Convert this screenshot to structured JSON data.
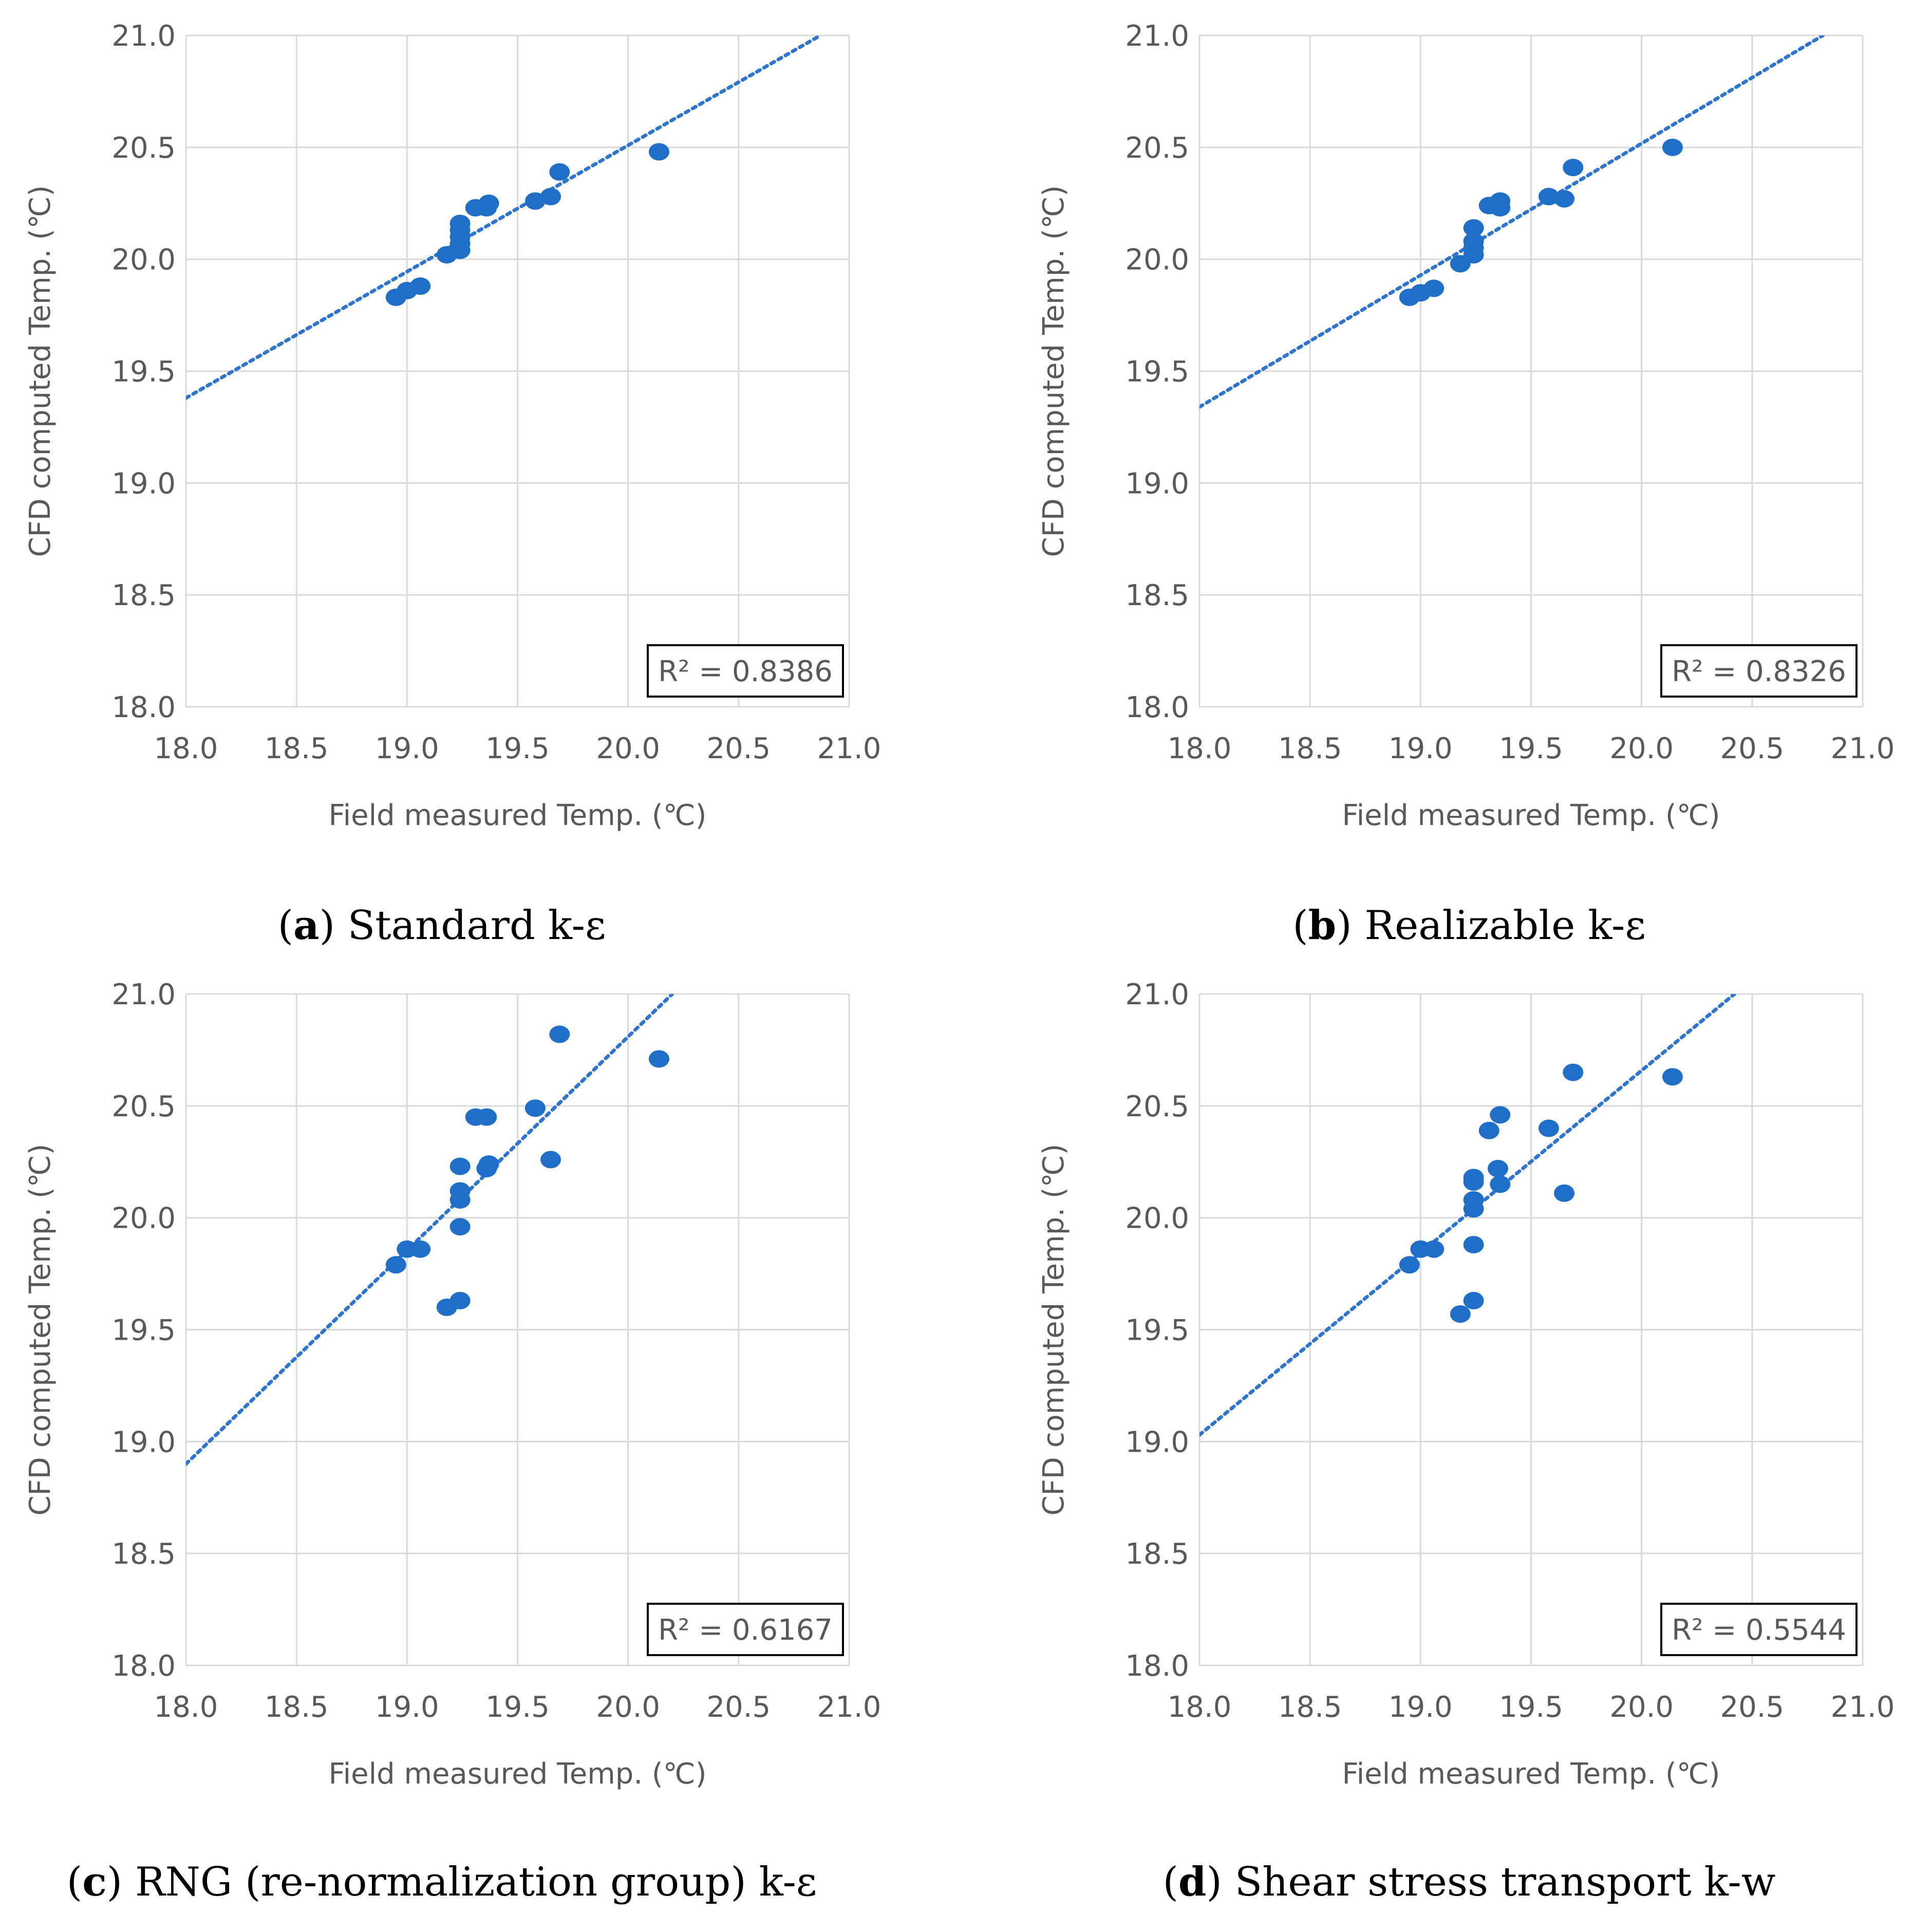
{
  "figure": {
    "panels": [
      {
        "id": "a",
        "caption_letter": "a",
        "caption_text": " Standard k-ε",
        "caption_open": "(",
        "caption_close": ")"
      },
      {
        "id": "b",
        "caption_letter": "b",
        "caption_text": " Realizable k-ε",
        "caption_open": "(",
        "caption_close": ")"
      },
      {
        "id": "c",
        "caption_letter": "c",
        "caption_text": " RNG (re-normalization group) k-ε",
        "caption_open": "(",
        "caption_close": ")"
      },
      {
        "id": "d",
        "caption_letter": "d",
        "caption_text": " Shear stress transport k-w",
        "caption_open": "(",
        "caption_close": ")"
      }
    ]
  },
  "colors": {
    "point": "#1F6FC9",
    "trend": "#2E75D1",
    "grid": "#D9D9D9",
    "text": "#595959"
  },
  "chart_data": [
    {
      "type": "scatter",
      "xlabel": "Field measured Temp. (℃)",
      "ylabel": "CFD computed Temp. (℃)",
      "xlim": [
        18.0,
        21.0
      ],
      "ylim": [
        18.0,
        21.0
      ],
      "xticks": [
        "18.0",
        "18.5",
        "19.0",
        "19.5",
        "20.0",
        "20.5",
        "21.0"
      ],
      "yticks": [
        "18.0",
        "18.5",
        "19.0",
        "19.5",
        "20.0",
        "20.5",
        "21.0"
      ],
      "grid": true,
      "r2_label": "R² = 0.8386",
      "trendline": {
        "x0": 18.0,
        "y0": 19.38,
        "x1": 20.87,
        "y1": 21.0
      },
      "points": [
        {
          "x": 18.95,
          "y": 19.83
        },
        {
          "x": 19.0,
          "y": 19.86
        },
        {
          "x": 19.06,
          "y": 19.88
        },
        {
          "x": 19.18,
          "y": 20.02
        },
        {
          "x": 19.24,
          "y": 20.04
        },
        {
          "x": 19.24,
          "y": 20.07
        },
        {
          "x": 19.24,
          "y": 20.1
        },
        {
          "x": 19.24,
          "y": 20.13
        },
        {
          "x": 19.24,
          "y": 20.16
        },
        {
          "x": 19.31,
          "y": 20.23
        },
        {
          "x": 19.36,
          "y": 20.23
        },
        {
          "x": 19.37,
          "y": 20.25
        },
        {
          "x": 19.58,
          "y": 20.26
        },
        {
          "x": 19.65,
          "y": 20.28
        },
        {
          "x": 19.69,
          "y": 20.39
        },
        {
          "x": 20.14,
          "y": 20.48
        }
      ]
    },
    {
      "type": "scatter",
      "xlabel": "Field measured Temp. (℃)",
      "ylabel": "CFD computed Temp. (℃)",
      "xlim": [
        18.0,
        21.0
      ],
      "ylim": [
        18.0,
        21.0
      ],
      "xticks": [
        "18.0",
        "18.5",
        "19.0",
        "19.5",
        "20.0",
        "20.5",
        "21.0"
      ],
      "yticks": [
        "18.0",
        "18.5",
        "19.0",
        "19.5",
        "20.0",
        "20.5",
        "21.0"
      ],
      "grid": true,
      "r2_label": "R² = 0.8326",
      "trendline": {
        "x0": 18.0,
        "y0": 19.34,
        "x1": 20.82,
        "y1": 21.0
      },
      "points": [
        {
          "x": 18.95,
          "y": 19.83
        },
        {
          "x": 19.0,
          "y": 19.85
        },
        {
          "x": 19.06,
          "y": 19.87
        },
        {
          "x": 19.18,
          "y": 19.98
        },
        {
          "x": 19.24,
          "y": 20.02
        },
        {
          "x": 19.24,
          "y": 20.05
        },
        {
          "x": 19.24,
          "y": 20.08
        },
        {
          "x": 19.24,
          "y": 20.14
        },
        {
          "x": 19.31,
          "y": 20.24
        },
        {
          "x": 19.36,
          "y": 20.23
        },
        {
          "x": 19.36,
          "y": 20.26
        },
        {
          "x": 19.58,
          "y": 20.28
        },
        {
          "x": 19.65,
          "y": 20.27
        },
        {
          "x": 19.69,
          "y": 20.41
        },
        {
          "x": 20.14,
          "y": 20.5
        }
      ]
    },
    {
      "type": "scatter",
      "xlabel": "Field measured Temp. (℃)",
      "ylabel": "CFD computed Temp. (℃)",
      "xlim": [
        18.0,
        21.0
      ],
      "ylim": [
        18.0,
        21.0
      ],
      "xticks": [
        "18.0",
        "18.5",
        "19.0",
        "19.5",
        "20.0",
        "20.5",
        "21.0"
      ],
      "yticks": [
        "18.0",
        "18.5",
        "19.0",
        "19.5",
        "20.0",
        "20.5",
        "21.0"
      ],
      "grid": true,
      "r2_label": "R² = 0.6167",
      "trendline": {
        "x0": 18.0,
        "y0": 18.9,
        "x1": 20.2,
        "y1": 21.0
      },
      "points": [
        {
          "x": 18.95,
          "y": 19.79
        },
        {
          "x": 19.0,
          "y": 19.86
        },
        {
          "x": 19.06,
          "y": 19.86
        },
        {
          "x": 19.18,
          "y": 19.6
        },
        {
          "x": 19.24,
          "y": 19.63
        },
        {
          "x": 19.24,
          "y": 19.96
        },
        {
          "x": 19.24,
          "y": 20.08
        },
        {
          "x": 19.24,
          "y": 20.12
        },
        {
          "x": 19.24,
          "y": 20.23
        },
        {
          "x": 19.31,
          "y": 20.45
        },
        {
          "x": 19.36,
          "y": 20.45
        },
        {
          "x": 19.36,
          "y": 20.22
        },
        {
          "x": 19.37,
          "y": 20.24
        },
        {
          "x": 19.58,
          "y": 20.49
        },
        {
          "x": 19.65,
          "y": 20.26
        },
        {
          "x": 19.69,
          "y": 20.82
        },
        {
          "x": 20.14,
          "y": 20.71
        }
      ]
    },
    {
      "type": "scatter",
      "xlabel": "Field measured Temp. (℃)",
      "ylabel": "CFD computed Temp. (℃)",
      "xlim": [
        18.0,
        21.0
      ],
      "ylim": [
        18.0,
        21.0
      ],
      "xticks": [
        "18.0",
        "18.5",
        "19.0",
        "19.5",
        "20.0",
        "20.5",
        "21.0"
      ],
      "yticks": [
        "18.0",
        "18.5",
        "19.0",
        "19.5",
        "20.0",
        "20.5",
        "21.0"
      ],
      "grid": true,
      "r2_label": "R² = 0.5544",
      "trendline": {
        "x0": 18.0,
        "y0": 19.03,
        "x1": 20.42,
        "y1": 21.0
      },
      "points": [
        {
          "x": 18.95,
          "y": 19.79
        },
        {
          "x": 19.0,
          "y": 19.86
        },
        {
          "x": 19.06,
          "y": 19.86
        },
        {
          "x": 19.18,
          "y": 19.57
        },
        {
          "x": 19.24,
          "y": 19.63
        },
        {
          "x": 19.24,
          "y": 19.88
        },
        {
          "x": 19.24,
          "y": 20.04
        },
        {
          "x": 19.24,
          "y": 20.08
        },
        {
          "x": 19.24,
          "y": 20.16
        },
        {
          "x": 19.24,
          "y": 20.18
        },
        {
          "x": 19.31,
          "y": 20.39
        },
        {
          "x": 19.36,
          "y": 20.46
        },
        {
          "x": 19.35,
          "y": 20.22
        },
        {
          "x": 19.36,
          "y": 20.15
        },
        {
          "x": 19.58,
          "y": 20.4
        },
        {
          "x": 19.65,
          "y": 20.11
        },
        {
          "x": 19.69,
          "y": 20.65
        },
        {
          "x": 20.14,
          "y": 20.63
        }
      ]
    }
  ]
}
